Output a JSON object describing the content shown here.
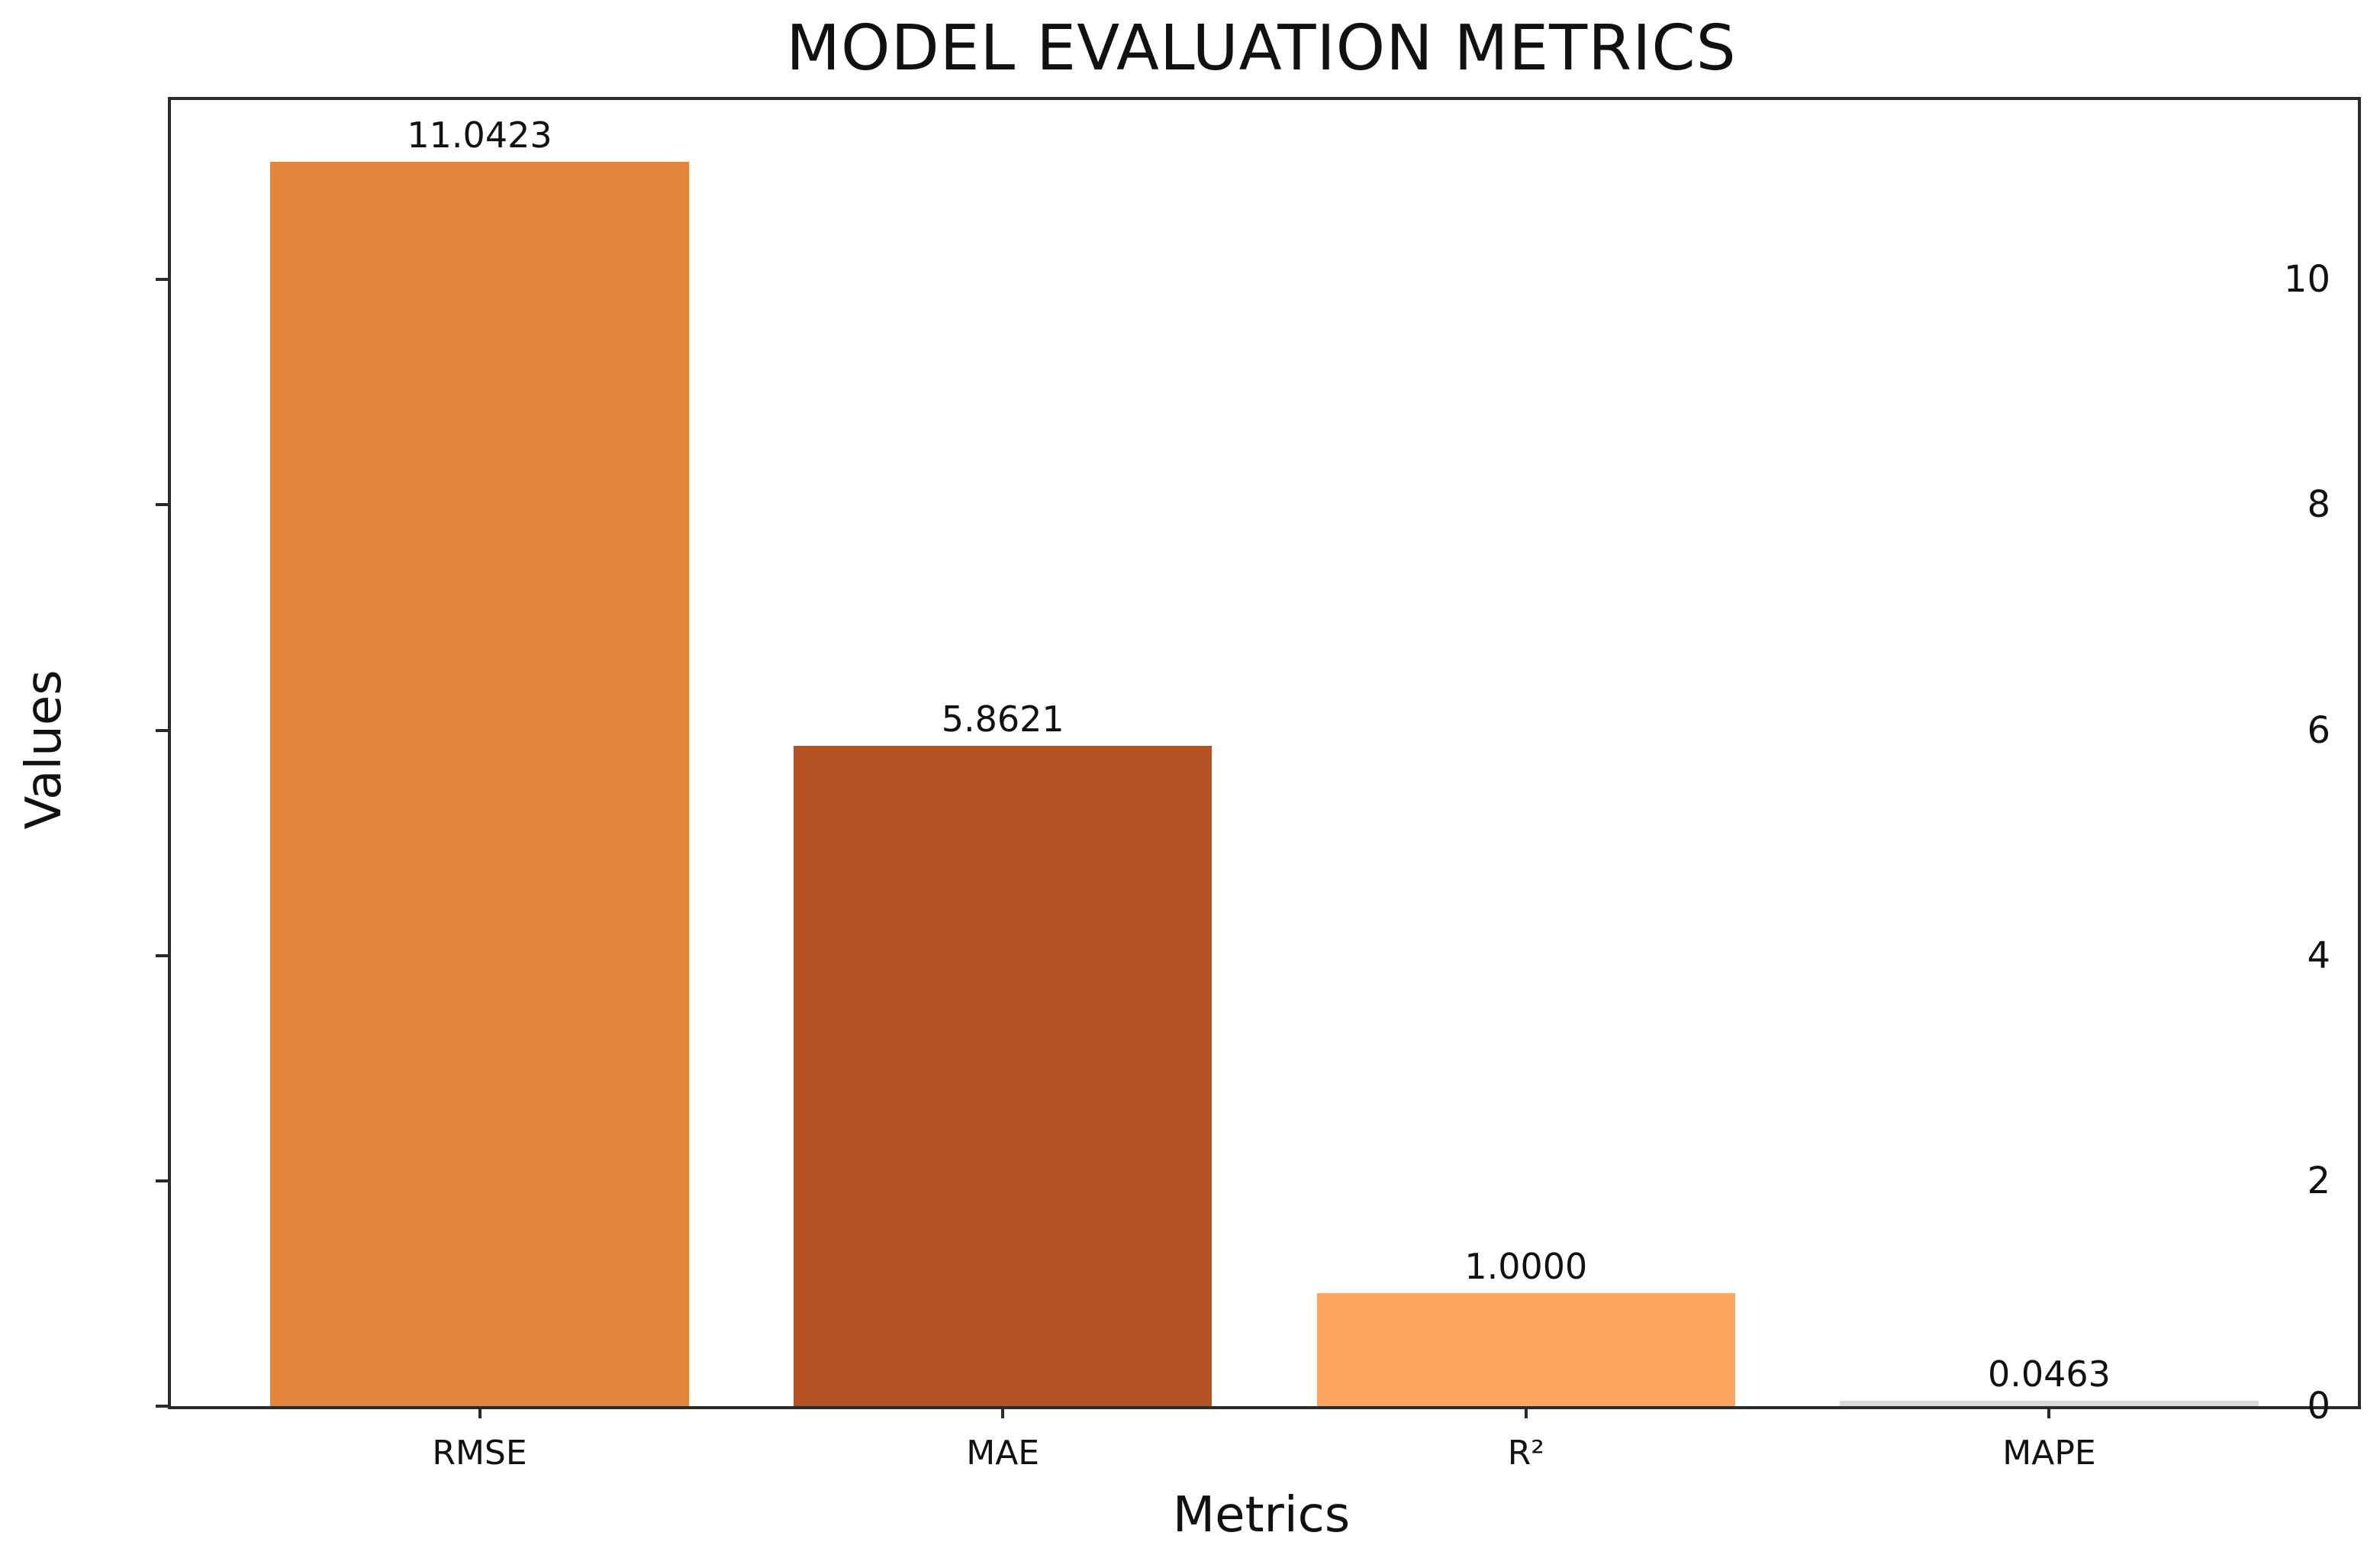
{
  "chart_data": {
    "type": "bar",
    "title": "MODEL EVALUATION METRICS",
    "xlabel": "Metrics",
    "ylabel": "Values",
    "categories": [
      "RMSE",
      "MAE",
      "R²",
      "MAPE"
    ],
    "values": [
      11.0423,
      5.8621,
      1.0,
      0.0463
    ],
    "value_labels": [
      "11.0423",
      "5.8621",
      "1.0000",
      "0.0463"
    ],
    "bar_colors": [
      "#e2863b",
      "#b55224",
      "#fda45f",
      "#d9d9d9"
    ],
    "yticks": [
      0,
      2,
      4,
      6,
      8,
      10
    ],
    "ytick_labels": [
      "0",
      "2",
      "4",
      "6",
      "8",
      "10"
    ],
    "ylim": [
      0,
      11.5944
    ],
    "x_units_min": -0.59,
    "x_units_max": 3.59,
    "bar_width_units": 0.8,
    "grid": false,
    "legend": "none",
    "frame_color": "#2b2b2b",
    "text_color": "#111111",
    "background_color": "#ffffff"
  }
}
